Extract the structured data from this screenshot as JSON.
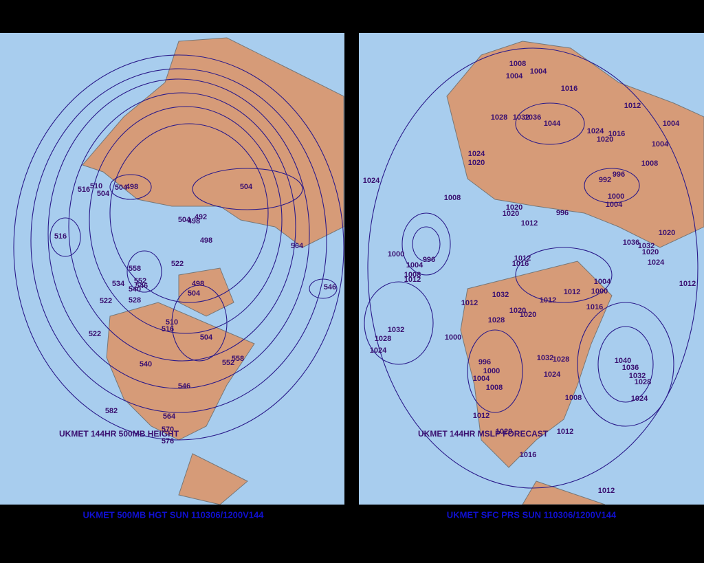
{
  "panels": [
    {
      "caption": "UKMET 500MB HGT SUN 110306/1200V144",
      "map_label": "UKMET 144HR 500MB HEIGHT",
      "contour_labels": [
        "516",
        "510",
        "504",
        "504",
        "498",
        "504",
        "504",
        "498",
        "492",
        "498",
        "516",
        "558",
        "522",
        "552",
        "534",
        "546",
        "540",
        "528",
        "522",
        "498",
        "504",
        "510",
        "516",
        "504",
        "522",
        "540",
        "546",
        "558",
        "552",
        "582",
        "564",
        "570",
        "576",
        "546",
        "564"
      ]
    },
    {
      "caption": "UKMET SFC PRS SUN 110306/1200V144",
      "map_label": "UKMET 144HR MSLP FORECAST",
      "contour_labels": [
        "1008",
        "1004",
        "1004",
        "1016",
        "1012",
        "1004",
        "1004",
        "1008",
        "1028",
        "1032",
        "1036",
        "1044",
        "1024",
        "1020",
        "1016",
        "1024",
        "1020",
        "1024",
        "996",
        "992",
        "1000",
        "1004",
        "1008",
        "1020",
        "1020",
        "996",
        "1012",
        "1020",
        "1036",
        "1032",
        "1020",
        "1024",
        "1012",
        "1016",
        "1000",
        "1004",
        "1008",
        "1012",
        "996",
        "1012",
        "1012",
        "1032",
        "1028",
        "1020",
        "1020",
        "1016",
        "1012",
        "1004",
        "1000",
        "1012",
        "1032",
        "1028",
        "1024",
        "1000",
        "996",
        "1000",
        "1004",
        "1008",
        "1032",
        "1028",
        "1024",
        "1008",
        "1040",
        "1036",
        "1032",
        "1028",
        "1024",
        "1012",
        "1012",
        "1020",
        "1016",
        "1012"
      ]
    }
  ]
}
